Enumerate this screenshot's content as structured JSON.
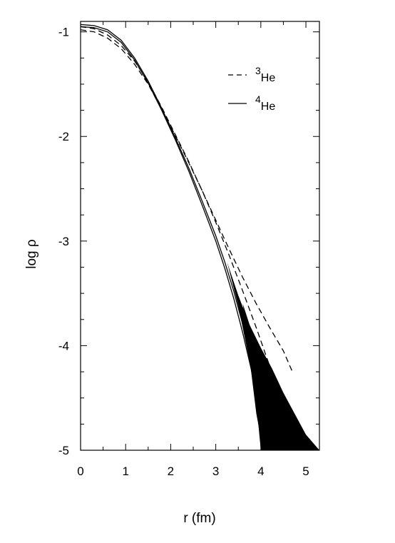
{
  "chart_data": {
    "type": "line",
    "title": "",
    "xlabel": "r (fm)",
    "ylabel": "log ρ",
    "xlim": [
      0,
      5.3
    ],
    "ylim": [
      -5,
      -0.9
    ],
    "grid": false,
    "legend_position": "top-right",
    "x_ticks": [
      0,
      1,
      2,
      3,
      4,
      5
    ],
    "x_tick_labels": [
      "0",
      "1",
      "2",
      "3",
      "4",
      "5"
    ],
    "y_ticks": [
      -1,
      -2,
      -3,
      -4,
      -5
    ],
    "y_tick_labels": [
      "-1",
      "-2",
      "-3",
      "-4",
      "-5"
    ],
    "legend": [
      {
        "sup": "3",
        "sub": "He",
        "style": "dashed"
      },
      {
        "sup": "4",
        "sub": "He",
        "style": "solid"
      }
    ],
    "series": [
      {
        "name": "3He",
        "style": "dashed",
        "x": [
          0,
          0.3,
          0.6,
          0.9,
          1.2,
          1.5,
          1.8,
          2.1,
          2.4,
          2.7,
          3.0,
          3.3,
          3.6,
          3.9,
          4.2,
          4.5,
          4.7
        ],
        "y": [
          -0.95,
          -0.97,
          -1.03,
          -1.13,
          -1.28,
          -1.48,
          -1.72,
          -1.98,
          -2.24,
          -2.52,
          -2.8,
          -3.08,
          -3.35,
          -3.6,
          -3.83,
          -4.05,
          -4.25
        ]
      },
      {
        "name": "3He",
        "style": "dashed",
        "x": [
          0,
          0.3,
          0.6,
          0.9,
          1.2,
          1.5,
          1.8,
          2.1,
          2.4,
          2.7,
          3.0,
          3.3,
          3.6,
          3.9,
          4.2,
          4.5,
          4.7
        ],
        "y": [
          -0.98,
          -1.0,
          -1.06,
          -1.16,
          -1.31,
          -1.5,
          -1.74,
          -1.99,
          -2.25,
          -2.52,
          -2.82,
          -3.14,
          -3.48,
          -3.83,
          -4.2,
          -4.6,
          -4.9
        ]
      },
      {
        "name": "4He",
        "style": "solid",
        "x": [
          0,
          0.3,
          0.6,
          0.9,
          1.2,
          1.5,
          1.8,
          2.1,
          2.4,
          2.7,
          3.0,
          3.2,
          3.4,
          3.6,
          3.8,
          4.0,
          4.1
        ],
        "y": [
          -0.93,
          -0.94,
          -0.98,
          -1.08,
          -1.25,
          -1.47,
          -1.73,
          -2.01,
          -2.3,
          -2.62,
          -2.95,
          -3.2,
          -3.48,
          -3.8,
          -4.18,
          -4.62,
          -4.95
        ]
      },
      {
        "name": "4He",
        "style": "solid",
        "x": [
          0,
          0.3,
          0.6,
          0.9,
          1.2,
          1.5,
          1.8,
          2.1,
          2.4,
          2.7,
          3.0,
          3.2,
          3.4,
          3.6,
          3.8,
          3.95,
          4.05
        ],
        "y": [
          -0.95,
          -0.96,
          -1.0,
          -1.1,
          -1.27,
          -1.49,
          -1.75,
          -2.03,
          -2.33,
          -2.66,
          -3.0,
          -3.26,
          -3.55,
          -3.88,
          -4.25,
          -4.62,
          -4.97
        ]
      }
    ],
    "shaded_bands": [
      {
        "upper": {
          "x": [
            3.25,
            3.5,
            3.75,
            4.0,
            4.25,
            4.5,
            4.75,
            5.0,
            5.3
          ],
          "y": [
            -3.2,
            -3.52,
            -3.8,
            -4.02,
            -4.22,
            -4.45,
            -4.65,
            -4.85,
            -5.0
          ]
        },
        "lower": {
          "x": [
            3.25,
            3.5,
            3.75,
            3.9,
            4.0
          ],
          "y": [
            -3.2,
            -3.62,
            -4.15,
            -4.55,
            -5.0
          ]
        }
      },
      {
        "upper": {
          "x": [
            3.6,
            3.75,
            3.9,
            4.0,
            4.2,
            4.25
          ],
          "y": [
            -3.6,
            -3.8,
            -4.05,
            -4.3,
            -4.85,
            -5.0
          ]
        },
        "lower": {
          "x": [
            3.6,
            3.7,
            3.8,
            3.9,
            4.05
          ],
          "y": [
            -3.6,
            -3.95,
            -4.3,
            -4.65,
            -5.0
          ]
        }
      }
    ]
  }
}
